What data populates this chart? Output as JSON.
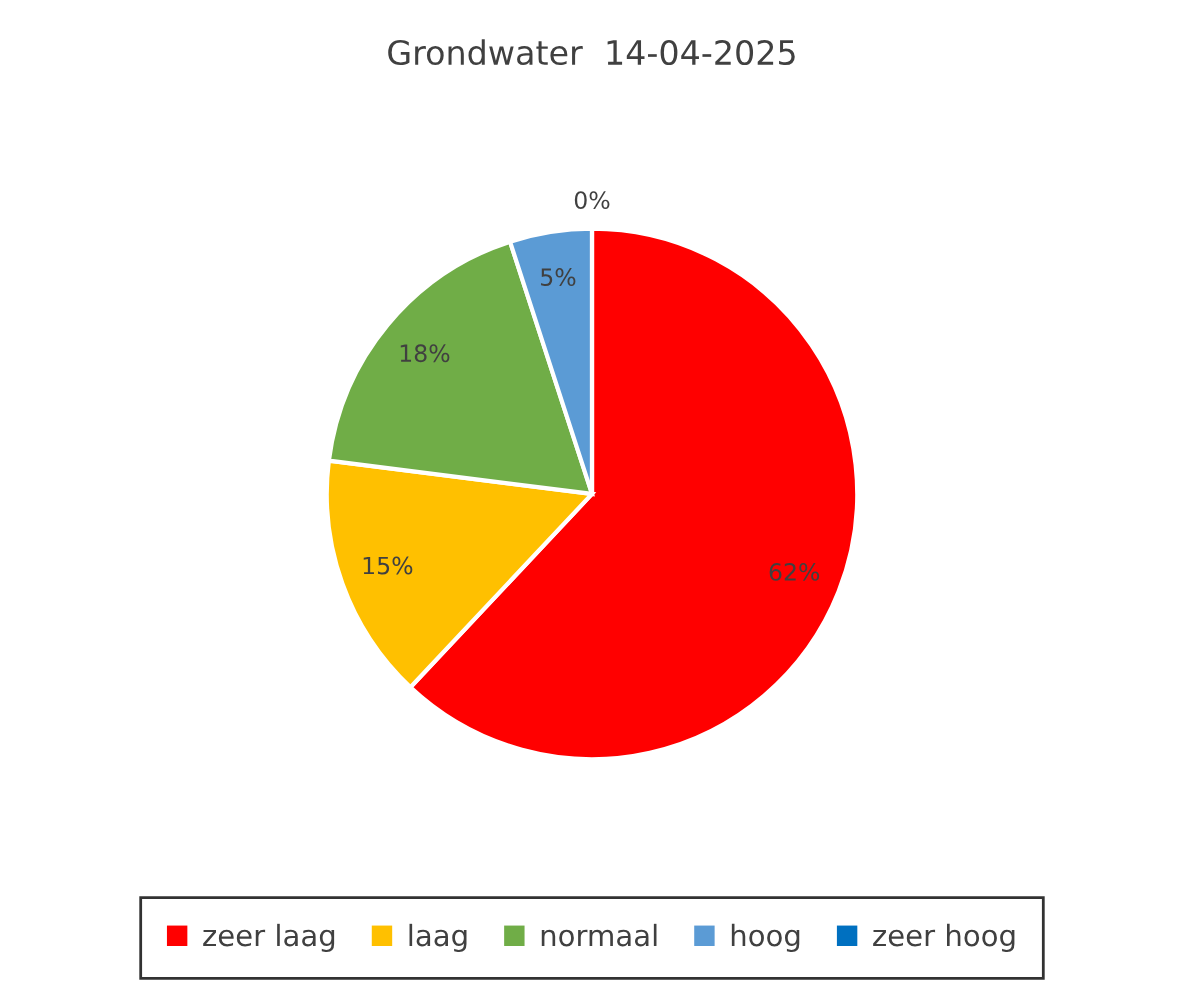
{
  "chart_data": {
    "type": "pie",
    "title": "Grondwater  14-04-2025",
    "categories": [
      "zeer laag",
      "laag",
      "normaal",
      "hoog",
      "zeer hoog"
    ],
    "values": [
      62,
      15,
      18,
      5,
      0
    ],
    "colors": [
      "#ff0000",
      "#ffc000",
      "#70ad47",
      "#5b9bd5",
      "#0070c0"
    ],
    "value_labels": [
      "62%",
      "15%",
      "18%",
      "5%",
      "0%"
    ],
    "legend": "bottom"
  }
}
